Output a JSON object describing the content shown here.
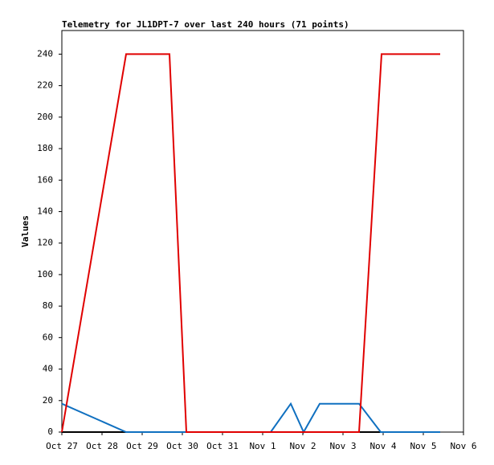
{
  "chart_data": {
    "type": "line",
    "title": "Telemetry for JL1DPT-7 over last 240 hours (71 points)",
    "y_label": "Values",
    "xlim": [
      0,
      10
    ],
    "xticks": [
      {
        "value": 0,
        "label": "Oct 27"
      },
      {
        "value": 1,
        "label": "Oct 28"
      },
      {
        "value": 2,
        "label": "Oct 29"
      },
      {
        "value": 3,
        "label": "Oct 30"
      },
      {
        "value": 4,
        "label": "Oct 31"
      },
      {
        "value": 5,
        "label": "Nov 1"
      },
      {
        "value": 6,
        "label": "Nov 2"
      },
      {
        "value": 7,
        "label": "Nov 3"
      },
      {
        "value": 8,
        "label": "Nov 4"
      },
      {
        "value": 9,
        "label": "Nov 5"
      },
      {
        "value": 10,
        "label": "Nov 6"
      }
    ],
    "ylim": [
      0,
      255
    ],
    "yticks": [
      0,
      20,
      40,
      60,
      80,
      100,
      120,
      140,
      160,
      180,
      200,
      220,
      240
    ],
    "series": [
      {
        "color": "#000000",
        "x": [
          0,
          9.42
        ],
        "values": [
          0,
          0
        ]
      },
      {
        "color": "#1070c0",
        "x": [
          0,
          1.6,
          5.2,
          5.7,
          6.02,
          6.42,
          7.4,
          7.94,
          9.42
        ],
        "values": [
          18,
          0,
          0,
          18,
          0,
          18,
          18,
          0,
          0
        ]
      },
      {
        "color": "#e00000",
        "x": [
          0,
          1.6,
          2.68,
          3.1,
          7.4,
          7.96,
          9.42
        ],
        "values": [
          0,
          240,
          240,
          0,
          0,
          240,
          240
        ]
      }
    ]
  }
}
